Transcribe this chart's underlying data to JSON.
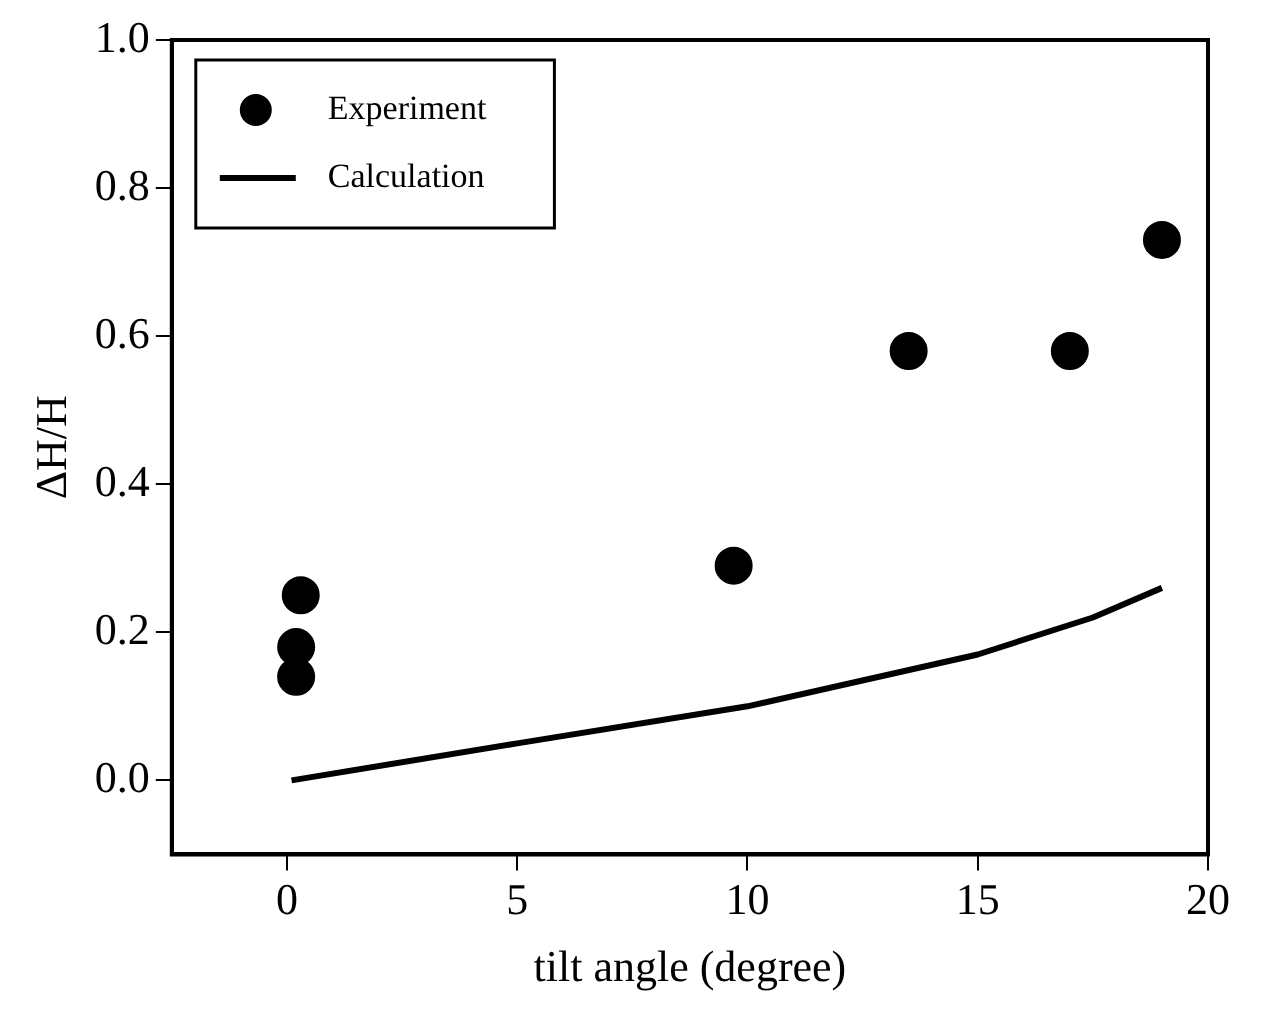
{
  "chart_data": {
    "type": "scatter",
    "xlabel": "tilt angle (degree)",
    "ylabel": "ΔH/H",
    "xlim": [
      -2.5,
      20
    ],
    "xticks": [
      0,
      5,
      10,
      15,
      20
    ],
    "ylim": [
      -0.1,
      1.0
    ],
    "yticks": [
      {
        "value": 0,
        "label": "0.0"
      },
      0.2,
      0.4,
      0.6,
      0.8,
      {
        "value": 1,
        "label": "1.0"
      }
    ],
    "grid": false,
    "legend": "top left",
    "series": [
      {
        "name": "Experiment",
        "marker": "circle",
        "color": "#000000",
        "x": [
          0.2,
          0.2,
          0.3,
          9.7,
          13.5,
          17,
          19
        ],
        "values": [
          0.14,
          0.18,
          0.25,
          0.29,
          0.58,
          0.58,
          0.73
        ]
      },
      {
        "name": "Calculation",
        "type": "line",
        "color": "#000000",
        "line_style": "solid",
        "x": [
          0.1,
          5,
          10,
          15,
          17.5,
          19
        ],
        "values": [
          0.0,
          0.05,
          0.1,
          0.17,
          0.22,
          0.26
        ]
      }
    ]
  }
}
